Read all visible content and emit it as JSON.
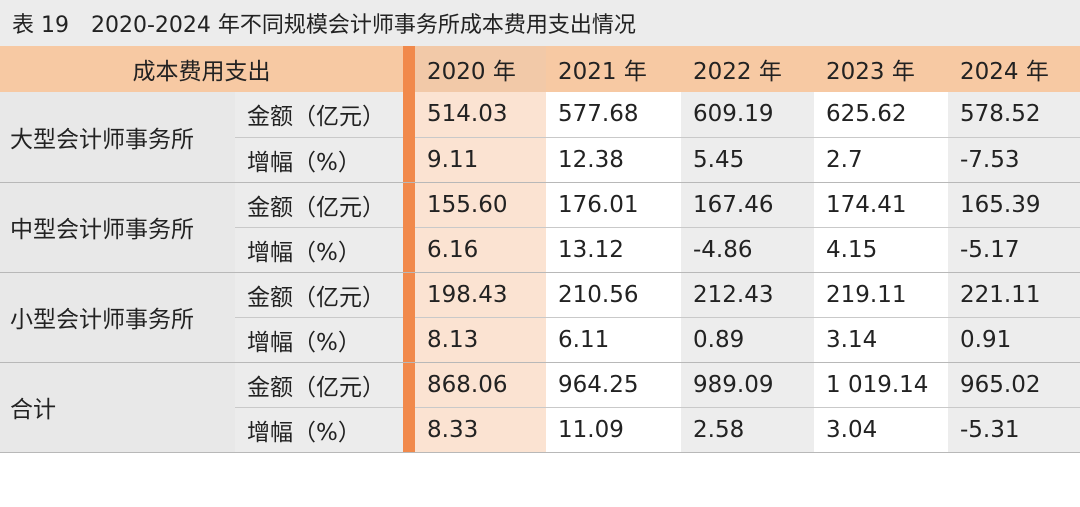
{
  "title": "表 19　2020-2024 年不同规模会计师事务所成本费用支出情况",
  "header": {
    "category": "成本费用支出",
    "years": [
      "2020 年",
      "2021 年",
      "2022 年",
      "2023 年",
      "2024 年"
    ]
  },
  "groups": [
    {
      "name": "大型会计师事务所",
      "rows": [
        {
          "metric": "金额（亿元）",
          "values": [
            "514.03",
            "577.68",
            "609.19",
            "625.62",
            "578.52"
          ]
        },
        {
          "metric": "增幅（%）",
          "values": [
            "9.11",
            "12.38",
            "5.45",
            "2.7",
            "-7.53"
          ]
        }
      ]
    },
    {
      "name": "中型会计师事务所",
      "rows": [
        {
          "metric": "金额（亿元）",
          "values": [
            "155.60",
            "176.01",
            "167.46",
            "174.41",
            "165.39"
          ]
        },
        {
          "metric": "增幅（%）",
          "values": [
            "6.16",
            "13.12",
            "-4.86",
            "4.15",
            "-5.17"
          ]
        }
      ]
    },
    {
      "name": "小型会计师事务所",
      "rows": [
        {
          "metric": "金额（亿元）",
          "values": [
            "198.43",
            "210.56",
            "212.43",
            "219.11",
            "221.11"
          ]
        },
        {
          "metric": "增幅（%）",
          "values": [
            "8.13",
            "6.11",
            "0.89",
            "3.14",
            "0.91"
          ]
        }
      ]
    },
    {
      "name": "合计",
      "rows": [
        {
          "metric": "金额（亿元）",
          "values": [
            "868.06",
            "964.25",
            "989.09",
            "1 019.14",
            "965.02"
          ]
        },
        {
          "metric": "增幅（%）",
          "values": [
            "8.33",
            "11.09",
            "2.58",
            "3.04",
            "-5.31"
          ]
        }
      ]
    }
  ],
  "colors": {
    "header_bg": "#f7c9a3",
    "divider": "#f1894b",
    "highlight_col_bg": "#fbe3d2",
    "row_label_bg": "#e8e8e8"
  }
}
